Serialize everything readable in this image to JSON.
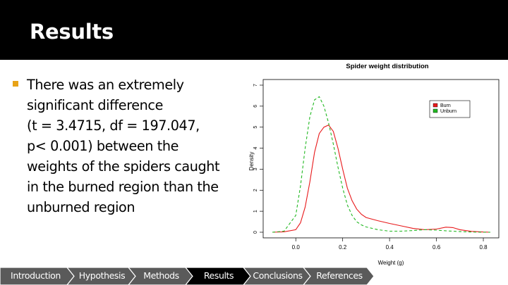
{
  "slide": {
    "title": "Results",
    "bullet_lines": [
      "There was an  extremely",
      "significant difference",
      "(t = 3.4715, df = 197.047,",
      "p< 0.001) between the",
      "weights of the spiders caught",
      "in the burned region than the",
      "unburned region"
    ]
  },
  "colors": {
    "title_bar": "#000000",
    "bullet": "#e8a317",
    "nav_inactive": "#5a5a5a",
    "nav_active": "#000000",
    "burn": "#e8191b",
    "unburn": "#22b822"
  },
  "navigation": {
    "items": [
      {
        "label": "Introduction",
        "active": false
      },
      {
        "label": "Hypothesis",
        "active": false
      },
      {
        "label": "Methods",
        "active": false
      },
      {
        "label": "Results",
        "active": true
      },
      {
        "label": "Conclusions",
        "active": false
      },
      {
        "label": "References",
        "active": false
      }
    ]
  },
  "chart_data": {
    "type": "line",
    "title": "Spider weight distribution",
    "xlabel": "Weight (g)",
    "ylabel": "Density",
    "xlim": [
      -0.1,
      0.83
    ],
    "ylim": [
      0,
      7
    ],
    "x_ticks": [
      "0.0",
      "0.2",
      "0.4",
      "0.6",
      "0.8"
    ],
    "x_tick_values": [
      0.0,
      0.2,
      0.4,
      0.6,
      0.8
    ],
    "y_ticks": [
      "0",
      "1",
      "2",
      "3",
      "4",
      "5",
      "6",
      "7"
    ],
    "y_tick_values": [
      0,
      1,
      2,
      3,
      4,
      5,
      6,
      7
    ],
    "legend_position": "top-right",
    "grid": false,
    "series": [
      {
        "name": "Burn",
        "style": "solid",
        "color": "#e8191b",
        "x": [
          -0.1,
          -0.05,
          0.0,
          0.02,
          0.04,
          0.06,
          0.08,
          0.1,
          0.12,
          0.14,
          0.16,
          0.18,
          0.2,
          0.22,
          0.24,
          0.26,
          0.28,
          0.3,
          0.35,
          0.4,
          0.45,
          0.5,
          0.55,
          0.6,
          0.64,
          0.67,
          0.7,
          0.75,
          0.8,
          0.83
        ],
        "y": [
          0.0,
          0.02,
          0.12,
          0.45,
          1.2,
          2.4,
          3.8,
          4.7,
          5.0,
          5.1,
          4.8,
          4.0,
          3.0,
          2.1,
          1.5,
          1.1,
          0.85,
          0.7,
          0.55,
          0.42,
          0.3,
          0.18,
          0.12,
          0.15,
          0.24,
          0.22,
          0.12,
          0.04,
          0.01,
          0.0
        ]
      },
      {
        "name": "Unburn",
        "style": "dashed",
        "color": "#22b822",
        "x": [
          -0.1,
          -0.05,
          0.0,
          0.02,
          0.04,
          0.06,
          0.08,
          0.1,
          0.12,
          0.14,
          0.16,
          0.18,
          0.2,
          0.22,
          0.24,
          0.26,
          0.28,
          0.3,
          0.35,
          0.4,
          0.45,
          0.5,
          0.55,
          0.6,
          0.65,
          0.7,
          0.75,
          0.8,
          0.83
        ],
        "y": [
          0.0,
          0.05,
          0.8,
          2.2,
          4.0,
          5.5,
          6.3,
          6.45,
          6.0,
          5.2,
          4.2,
          3.1,
          2.1,
          1.3,
          0.8,
          0.5,
          0.35,
          0.25,
          0.12,
          0.05,
          0.05,
          0.08,
          0.12,
          0.1,
          0.06,
          0.03,
          0.01,
          0.0,
          0.0
        ]
      }
    ]
  }
}
